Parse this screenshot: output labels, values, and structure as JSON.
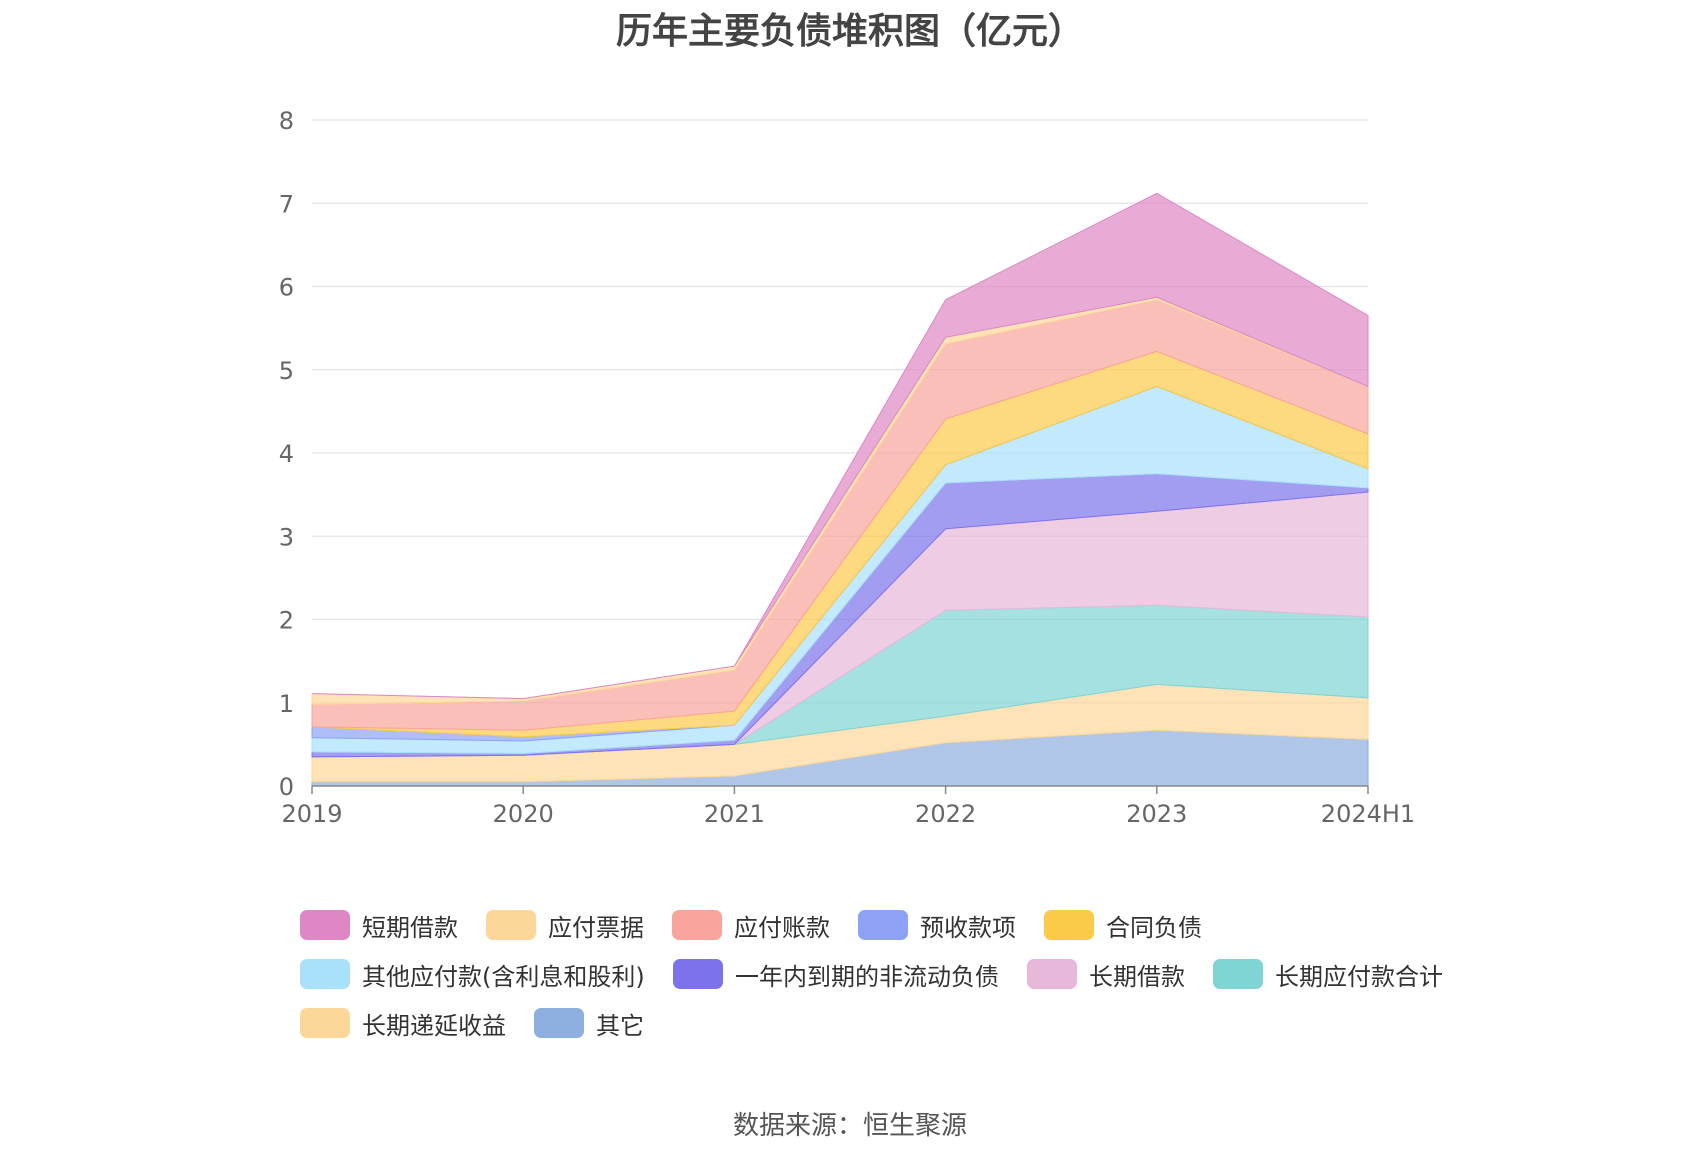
{
  "chart_data": {
    "type": "area",
    "stacked": true,
    "title": "历年主要负债堆积图（亿元）",
    "categories": [
      "2019",
      "2020",
      "2021",
      "2022",
      "2023",
      "2024H1"
    ],
    "ylim": [
      0,
      8
    ],
    "yticks": [
      0,
      1,
      2,
      3,
      4,
      5,
      6,
      7,
      8
    ],
    "grid": true,
    "legend_position": "bottom",
    "series": [
      {
        "name": "其它",
        "color": "#8faee0",
        "values": [
          0.05,
          0.05,
          0.12,
          0.52,
          0.67,
          0.56
        ]
      },
      {
        "name": "长期递延收益",
        "color": "#fdd79a",
        "values": [
          0.3,
          0.32,
          0.38,
          0.32,
          0.55,
          0.5
        ]
      },
      {
        "name": "长期应付款合计",
        "color": "#7fd4d4",
        "values": [
          0.0,
          0.0,
          0.0,
          1.27,
          0.95,
          0.97
        ]
      },
      {
        "name": "长期借款",
        "color": "#e7b8d9",
        "values": [
          0.0,
          0.0,
          0.0,
          0.98,
          1.13,
          1.5
        ]
      },
      {
        "name": "一年内到期的非流动负债",
        "color": "#7c73ec",
        "values": [
          0.06,
          0.02,
          0.05,
          0.55,
          0.45,
          0.05
        ]
      },
      {
        "name": "其他应付款(含利息和股利)",
        "color": "#a9e1fb",
        "values": [
          0.17,
          0.15,
          0.18,
          0.22,
          1.05,
          0.23
        ]
      },
      {
        "name": "预收款项",
        "color": "#8da2f5",
        "values": [
          0.13,
          0.05,
          0.0,
          0.0,
          0.0,
          0.0
        ]
      },
      {
        "name": "合同负债",
        "color": "#fcca49",
        "values": [
          0.0,
          0.08,
          0.17,
          0.55,
          0.42,
          0.42
        ]
      },
      {
        "name": "应付账款",
        "color": "#f9a49d",
        "values": [
          0.27,
          0.35,
          0.49,
          0.9,
          0.62,
          0.57
        ]
      },
      {
        "name": "应付票据",
        "color": "#fdd79a",
        "values": [
          0.13,
          0.03,
          0.05,
          0.08,
          0.03,
          0.0
        ]
      },
      {
        "name": "短期借款",
        "color": "#de87c4",
        "values": [
          0.0,
          0.0,
          0.0,
          0.45,
          1.25,
          0.85
        ]
      }
    ],
    "legend_order": [
      "短期借款",
      "应付票据",
      "应付账款",
      "预收款项",
      "合同负债",
      "其他应付款(含利息和股利)",
      "一年内到期的非流动负债",
      "长期借款",
      "长期应付款合计",
      "长期递延收益",
      "其它"
    ]
  },
  "footer": {
    "source": "数据来源：恒生聚源"
  }
}
